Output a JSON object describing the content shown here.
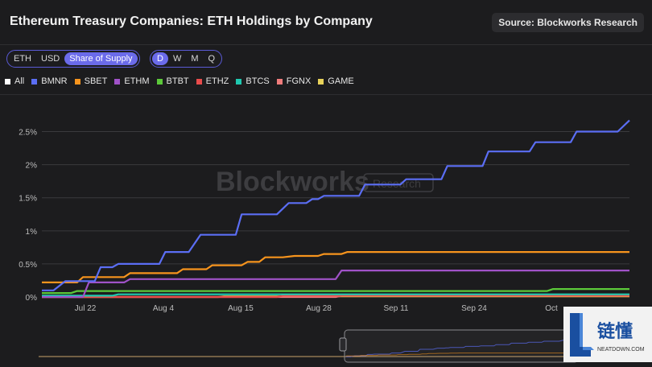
{
  "header": {
    "title": "Ethereum Treasury Companies: ETH Holdings by Company",
    "source": "Source: Blockworks Research"
  },
  "unit_toggle": [
    "ETH",
    "USD",
    "Share of Supply"
  ],
  "unit_selected": 2,
  "freq_toggle": [
    "D",
    "W",
    "M",
    "Q"
  ],
  "freq_selected": 0,
  "legend": [
    {
      "label": "All",
      "color": "#ffffff"
    },
    {
      "label": "BMNR",
      "color": "#5b6ef5"
    },
    {
      "label": "SBET",
      "color": "#f7941d"
    },
    {
      "label": "ETHM",
      "color": "#a052c8"
    },
    {
      "label": "BTBT",
      "color": "#5cc93a"
    },
    {
      "label": "ETHZ",
      "color": "#e94b4b"
    },
    {
      "label": "BTCS",
      "color": "#1fc9b0"
    },
    {
      "label": "FGNX",
      "color": "#f07c7c"
    },
    {
      "label": "GAME",
      "color": "#e8d25a"
    }
  ],
  "watermark": {
    "main": "Blockworks",
    "sub": "Research"
  },
  "badge": {
    "main": "链懂",
    "sub": "NEATDOWN.COM"
  },
  "chart_data": {
    "type": "line",
    "x_ticks": [
      "Jul 22",
      "Aug 4",
      "Aug 15",
      "Aug 28",
      "Sep 11",
      "Sep 24",
      "Oct"
    ],
    "y_ticks": [
      "0%",
      "0.5%",
      "1%",
      "1.5%",
      "2%",
      "2.5%"
    ],
    "ylim": [
      0,
      2.75
    ],
    "x_range": [
      0,
      100
    ],
    "series": [
      {
        "name": "BMNR",
        "color": "#5b6ef5",
        "points": [
          [
            0,
            0.1
          ],
          [
            2,
            0.1
          ],
          [
            4,
            0.24
          ],
          [
            6,
            0.24
          ],
          [
            9,
            0.24
          ],
          [
            10,
            0.45
          ],
          [
            12,
            0.45
          ],
          [
            13,
            0.5
          ],
          [
            20,
            0.5
          ],
          [
            21,
            0.68
          ],
          [
            25,
            0.68
          ],
          [
            27,
            0.94
          ],
          [
            33,
            0.94
          ],
          [
            34,
            1.25
          ],
          [
            40,
            1.25
          ],
          [
            42,
            1.42
          ],
          [
            45,
            1.42
          ],
          [
            46,
            1.48
          ],
          [
            47,
            1.48
          ],
          [
            48,
            1.53
          ],
          [
            54,
            1.53
          ],
          [
            55,
            1.7
          ],
          [
            61,
            1.7
          ],
          [
            62,
            1.78
          ],
          [
            68,
            1.78
          ],
          [
            69,
            1.98
          ],
          [
            75,
            1.98
          ],
          [
            76,
            2.2
          ],
          [
            83,
            2.2
          ],
          [
            84,
            2.34
          ],
          [
            90,
            2.34
          ],
          [
            91,
            2.5
          ],
          [
            98,
            2.5
          ],
          [
            100,
            2.67
          ]
        ]
      },
      {
        "name": "SBET",
        "color": "#f7941d",
        "points": [
          [
            0,
            0.22
          ],
          [
            6,
            0.22
          ],
          [
            7,
            0.3
          ],
          [
            14,
            0.3
          ],
          [
            15,
            0.36
          ],
          [
            23,
            0.36
          ],
          [
            24,
            0.42
          ],
          [
            28,
            0.42
          ],
          [
            29,
            0.48
          ],
          [
            34,
            0.48
          ],
          [
            35,
            0.53
          ],
          [
            37,
            0.53
          ],
          [
            38,
            0.6
          ],
          [
            41,
            0.6
          ],
          [
            43,
            0.62
          ],
          [
            47,
            0.62
          ],
          [
            48,
            0.65
          ],
          [
            51,
            0.65
          ],
          [
            52,
            0.68
          ],
          [
            100,
            0.68
          ]
        ]
      },
      {
        "name": "ETHM",
        "color": "#a052c8",
        "points": [
          [
            0,
            0.0
          ],
          [
            7,
            0.0
          ],
          [
            8,
            0.22
          ],
          [
            14,
            0.22
          ],
          [
            15,
            0.27
          ],
          [
            50,
            0.27
          ],
          [
            51,
            0.4
          ],
          [
            100,
            0.4
          ]
        ]
      },
      {
        "name": "BTBT",
        "color": "#5cc93a",
        "points": [
          [
            0,
            0.06
          ],
          [
            5,
            0.06
          ],
          [
            6,
            0.09
          ],
          [
            86,
            0.09
          ],
          [
            87,
            0.12
          ],
          [
            100,
            0.12
          ]
        ]
      },
      {
        "name": "BTCS",
        "color": "#1fc9b0",
        "points": [
          [
            0,
            0.02
          ],
          [
            12,
            0.02
          ],
          [
            13,
            0.04
          ],
          [
            100,
            0.04
          ]
        ]
      },
      {
        "name": "ETHZ",
        "color": "#e94b4b",
        "points": [
          [
            0,
            0.0
          ],
          [
            40,
            0.0
          ],
          [
            41,
            0.02
          ],
          [
            100,
            0.02
          ]
        ]
      },
      {
        "name": "FGNX",
        "color": "#f07c7c",
        "points": [
          [
            0,
            0.0
          ],
          [
            50,
            0.0
          ],
          [
            51,
            0.02
          ],
          [
            100,
            0.02
          ]
        ]
      },
      {
        "name": "GAME",
        "color": "#e8d25a",
        "points": [
          [
            0,
            0.0
          ],
          [
            30,
            0.0
          ],
          [
            31,
            0.01
          ],
          [
            100,
            0.01
          ]
        ]
      }
    ]
  }
}
